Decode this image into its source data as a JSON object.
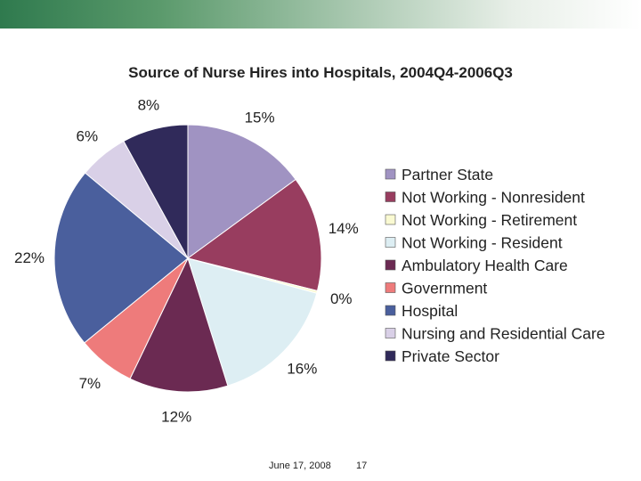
{
  "chart_data": {
    "type": "pie",
    "title": "Source of Nurse Hires into Hospitals, 2004Q4-2006Q3",
    "legend_position": "right",
    "slices": [
      {
        "label": "Partner State",
        "value": 15,
        "value_label": "15%",
        "color": "#a093c2"
      },
      {
        "label": "Not Working - Nonresident",
        "value": 14,
        "value_label": "14%",
        "color": "#983d5f"
      },
      {
        "label": "Not Working - Retirement",
        "value": 0.3,
        "value_label": "0%",
        "color": "#fafad2"
      },
      {
        "label": "Not Working - Resident",
        "value": 16,
        "value_label": "16%",
        "color": "#ddeef3"
      },
      {
        "label": "Ambulatory Health Care",
        "value": 12,
        "value_label": "12%",
        "color": "#6b2a52"
      },
      {
        "label": "Government",
        "value": 7,
        "value_label": "7%",
        "color": "#ee7b7b"
      },
      {
        "label": "Hospital",
        "value": 22,
        "value_label": "22%",
        "color": "#4a5f9d"
      },
      {
        "label": "Nursing and Residential Care",
        "value": 6,
        "value_label": "6%",
        "color": "#d9d0e7"
      },
      {
        "label": "Private Sector",
        "value": 8,
        "value_label": "8%",
        "color": "#302a5a"
      }
    ]
  },
  "footer": {
    "date": "June 17, 2008",
    "page": "17"
  }
}
